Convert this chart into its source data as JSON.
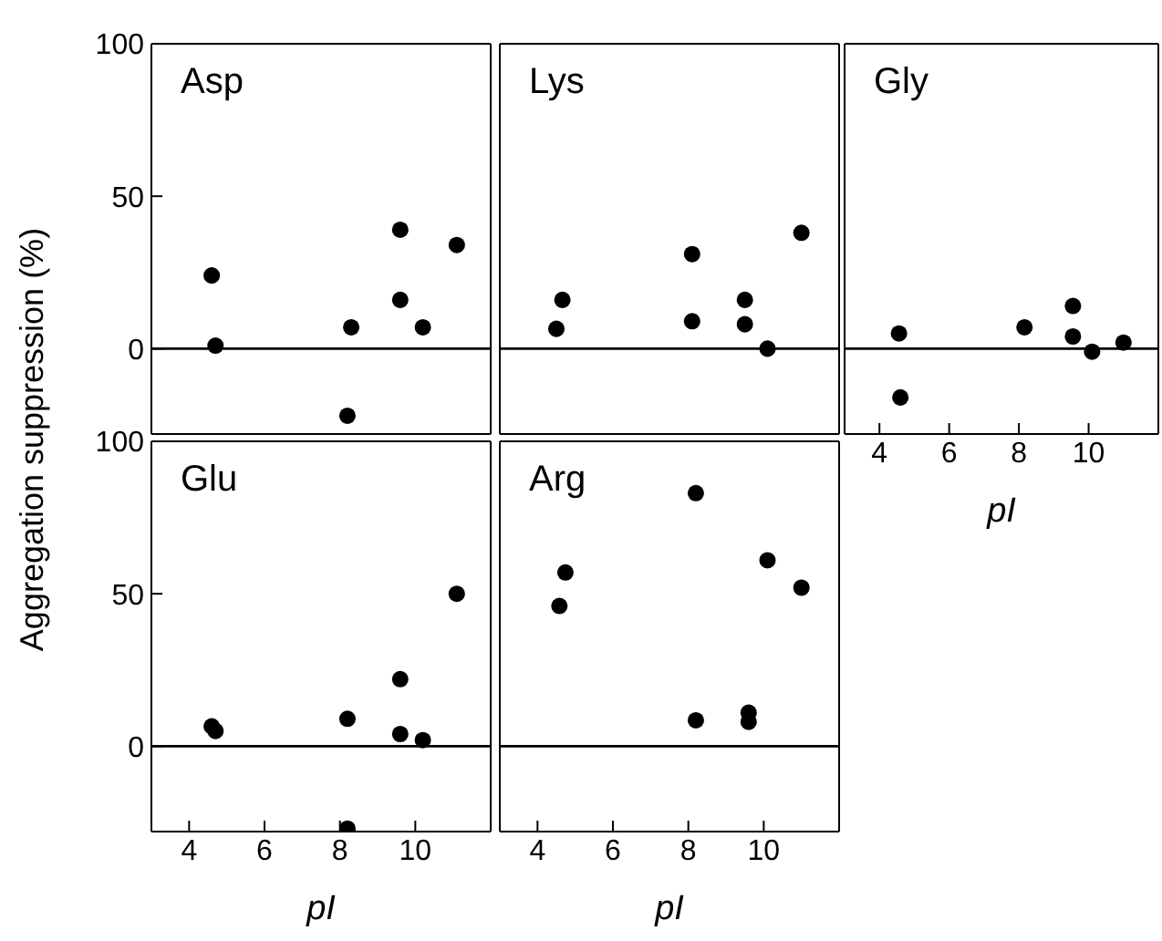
{
  "chart_data": [
    {
      "type": "scatter",
      "title": "Asp",
      "ylabel": "Aggregation suppression (%)",
      "x": [
        4.6,
        4.7,
        8.3,
        8.2,
        9.6,
        9.6,
        10.2,
        11.1
      ],
      "series": [
        {
          "color": "#000000",
          "values": [
            24,
            1,
            7,
            -22,
            39,
            16,
            7,
            34
          ]
        }
      ],
      "xlim": [
        3,
        12
      ],
      "ylim": [
        -28,
        100
      ],
      "xticks": [
        4,
        6,
        8,
        10
      ],
      "yticks": [
        0,
        50,
        100
      ],
      "marker": "circle",
      "tick_labels": "y",
      "ref_lines": [
        {
          "axis": "y",
          "value": 0
        }
      ]
    },
    {
      "type": "scatter",
      "title": "Lys",
      "x": [
        4.66,
        4.5,
        8.1,
        8.1,
        9.5,
        9.5,
        10.1,
        11.0
      ],
      "series": [
        {
          "color": "#000000",
          "values": [
            16,
            6.5,
            31,
            9,
            16,
            8,
            0,
            38
          ]
        }
      ],
      "xlim": [
        3,
        12
      ],
      "ylim": [
        -28,
        100
      ],
      "xticks": [
        4,
        6,
        8,
        10
      ],
      "yticks": [
        0,
        50,
        100
      ],
      "marker": "circle",
      "tick_labels": false,
      "ref_lines": [
        {
          "axis": "y",
          "value": 0
        }
      ]
    },
    {
      "type": "scatter",
      "title": "Gly",
      "xlabel": "pI",
      "x": [
        4.56,
        4.6,
        8.16,
        9.55,
        9.55,
        10.1,
        11.0
      ],
      "series": [
        {
          "color": "#000000",
          "values": [
            5,
            -16,
            7,
            14,
            4,
            -1,
            2
          ]
        }
      ],
      "xlim": [
        3,
        12
      ],
      "ylim": [
        -28,
        100
      ],
      "xticks": [
        4,
        6,
        8,
        10
      ],
      "yticks": [
        0,
        50,
        100
      ],
      "marker": "circle",
      "tick_labels": "x",
      "ref_lines": [
        {
          "axis": "y",
          "value": 0
        }
      ]
    },
    {
      "type": "scatter",
      "title": "Glu",
      "xlabel": "pI",
      "x": [
        4.6,
        4.7,
        8.2,
        8.2,
        9.6,
        9.6,
        10.2,
        11.1
      ],
      "series": [
        {
          "color": "#000000",
          "values": [
            6.5,
            5,
            9,
            -27,
            22,
            4,
            2,
            50
          ]
        }
      ],
      "xlim": [
        3,
        12
      ],
      "ylim": [
        -28,
        100
      ],
      "xticks": [
        4,
        6,
        8,
        10
      ],
      "yticks": [
        0,
        50,
        100
      ],
      "marker": "circle",
      "ref_lines": [
        {
          "axis": "y",
          "value": 0
        }
      ]
    },
    {
      "type": "scatter",
      "title": "Arg",
      "xlabel": "pI",
      "x": [
        4.74,
        4.58,
        8.2,
        8.2,
        9.6,
        9.6,
        10.1,
        11.0
      ],
      "series": [
        {
          "color": "#000000",
          "values": [
            57,
            46,
            83,
            8.5,
            11,
            8,
            61,
            52
          ]
        }
      ],
      "xlim": [
        3,
        12
      ],
      "ylim": [
        -28,
        100
      ],
      "xticks": [
        4,
        6,
        8,
        10
      ],
      "yticks": [
        0,
        50,
        100
      ],
      "marker": "circle",
      "tick_labels": "x",
      "ref_lines": [
        {
          "axis": "y",
          "value": 0
        }
      ]
    }
  ]
}
